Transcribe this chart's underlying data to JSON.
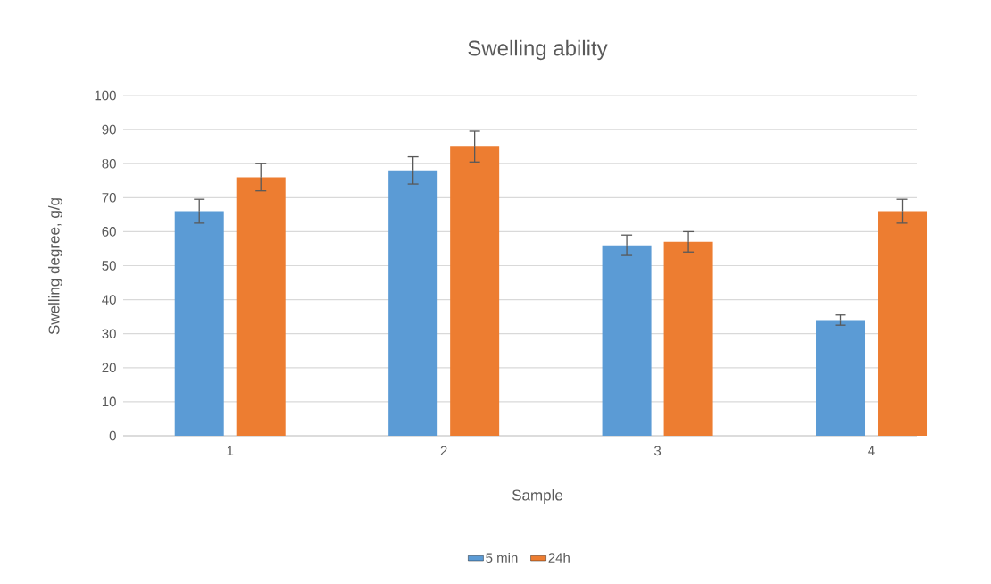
{
  "chart_data": {
    "type": "bar",
    "title": "Swelling ability",
    "xlabel": "Sample",
    "ylabel": "Swelling degree, g/g",
    "categories": [
      "1",
      "2",
      "3",
      "4"
    ],
    "series": [
      {
        "name": "5 min",
        "color": "#5b9bd5",
        "values": [
          66,
          78,
          56,
          34
        ],
        "errors": [
          3.5,
          4,
          3,
          1.5
        ]
      },
      {
        "name": "24h",
        "color": "#ed7d31",
        "values": [
          76,
          85,
          57,
          66
        ],
        "errors": [
          4,
          4.5,
          3,
          3.5
        ]
      }
    ],
    "ylim": [
      0,
      100
    ],
    "yticks": [
      0,
      10,
      20,
      30,
      40,
      50,
      60,
      70,
      80,
      90,
      100
    ],
    "grid": "y",
    "legend": "bottom"
  }
}
